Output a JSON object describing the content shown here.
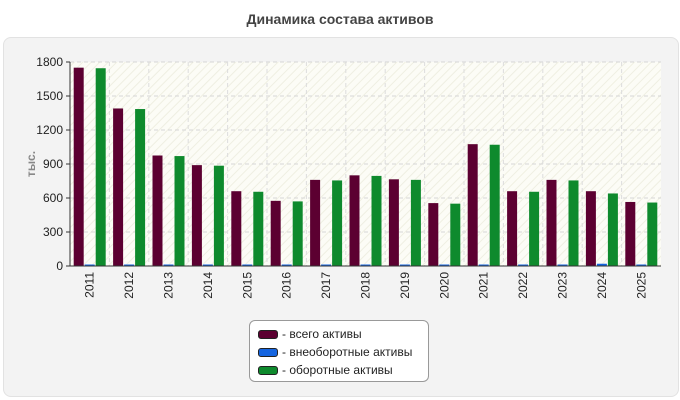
{
  "chart_data": {
    "type": "bar",
    "title": "Динамика состава активов",
    "ylabel": "тыс.",
    "xlabel": "",
    "ylim": [
      0,
      1800
    ],
    "yticks": [
      0,
      300,
      600,
      900,
      1200,
      1500,
      1800
    ],
    "grid": true,
    "legend_position": "bottom-center",
    "categories": [
      "2011",
      "2012",
      "2013",
      "2014",
      "2015",
      "2016",
      "2017",
      "2018",
      "2019",
      "2020",
      "2021",
      "2022",
      "2023",
      "2024",
      "2025"
    ],
    "series": [
      {
        "name": "- всего активы",
        "color": "#5c0031",
        "values": [
          1750,
          1390,
          975,
          890,
          660,
          575,
          760,
          800,
          765,
          555,
          1075,
          660,
          760,
          660,
          565
        ]
      },
      {
        "name": "- внеоборотные активы",
        "color": "#1565e0",
        "values": [
          5,
          5,
          5,
          5,
          5,
          5,
          5,
          5,
          5,
          5,
          5,
          5,
          5,
          20,
          5
        ]
      },
      {
        "name": "- оборотные активы",
        "color": "#0e8a2d",
        "values": [
          1745,
          1385,
          970,
          885,
          655,
          570,
          755,
          795,
          760,
          550,
          1070,
          655,
          755,
          640,
          560
        ]
      }
    ]
  }
}
